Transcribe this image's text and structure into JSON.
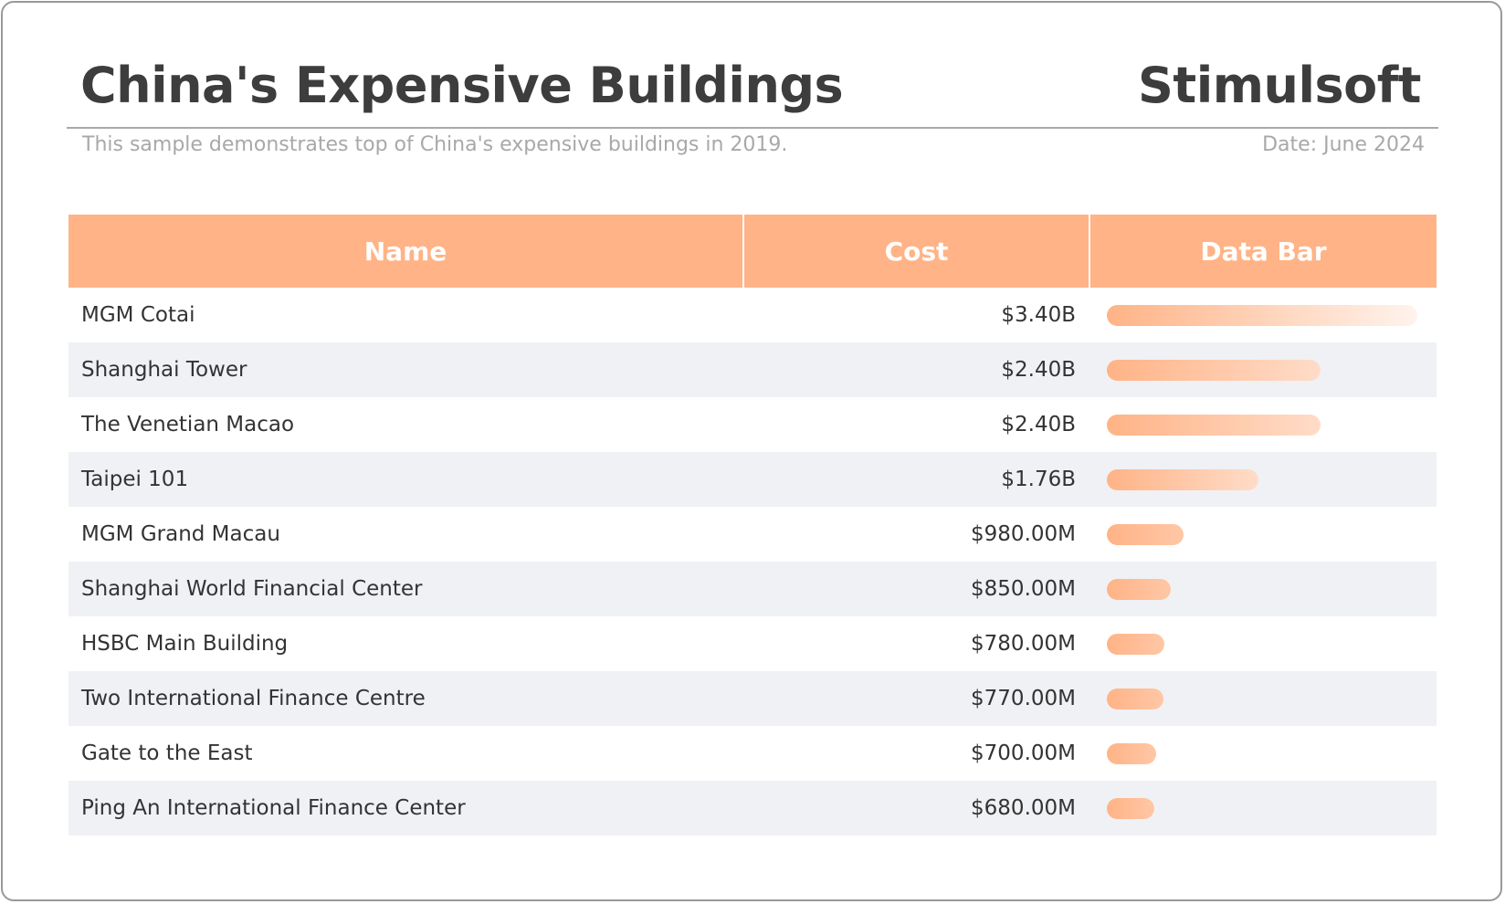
{
  "header": {
    "title": "China's Expensive Buildings",
    "brand": "Stimulsoft",
    "subtitle": "This sample demonstrates top of China's expensive buildings in 2019.",
    "date": "Date: June 2024"
  },
  "colors": {
    "accent": "#ffb386",
    "stripe": "#f0f1f5",
    "bar_end": "#fff3ec"
  },
  "table": {
    "columns": [
      "Name",
      "Cost",
      "Data Bar"
    ],
    "rows": [
      {
        "name": "MGM Cotai",
        "cost": "$3.40B",
        "value": 3.4
      },
      {
        "name": "Shanghai Tower",
        "cost": "$2.40B",
        "value": 2.4
      },
      {
        "name": "The Venetian Macao",
        "cost": "$2.40B",
        "value": 2.4
      },
      {
        "name": "Taipei 101",
        "cost": "$1.76B",
        "value": 1.76
      },
      {
        "name": "MGM Grand Macau",
        "cost": "$980.00M",
        "value": 0.98
      },
      {
        "name": "Shanghai World Financial Center",
        "cost": "$850.00M",
        "value": 0.85
      },
      {
        "name": "HSBC Main Building",
        "cost": "$780.00M",
        "value": 0.78
      },
      {
        "name": "Two International Finance Centre",
        "cost": "$770.00M",
        "value": 0.77
      },
      {
        "name": "Gate to the East",
        "cost": "$700.00M",
        "value": 0.7
      },
      {
        "name": "Ping An International Finance Center",
        "cost": "$680.00M",
        "value": 0.68
      }
    ]
  }
}
